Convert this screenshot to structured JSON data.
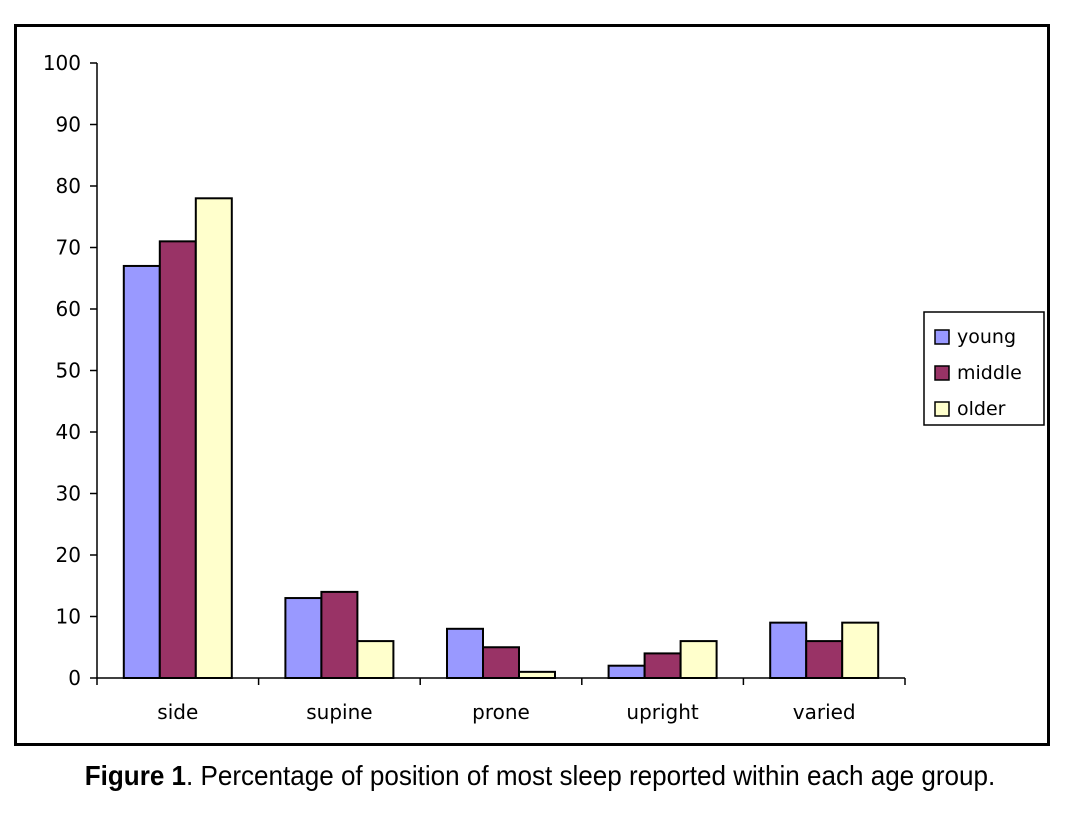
{
  "caption": {
    "label": "Figure 1",
    "text": ". Percentage of position of most sleep reported within each age group."
  },
  "chart_data": {
    "type": "bar",
    "title": "",
    "xlabel": "",
    "ylabel": "",
    "categories": [
      "side",
      "supine",
      "prone",
      "upright",
      "varied"
    ],
    "series": [
      {
        "name": "young",
        "color": "#9999ff",
        "values": [
          67,
          13,
          8,
          2,
          9
        ]
      },
      {
        "name": "middle",
        "color": "#993366",
        "values": [
          71,
          14,
          5,
          4,
          6
        ]
      },
      {
        "name": "older",
        "color": "#ffffcc",
        "values": [
          78,
          6,
          1,
          6,
          9
        ]
      }
    ],
    "ylim": [
      0,
      100
    ],
    "yticks": [
      "0",
      "10",
      "20",
      "30",
      "40",
      "50",
      "60",
      "70",
      "80",
      "90",
      "100"
    ],
    "grid": false,
    "legend": "right"
  }
}
